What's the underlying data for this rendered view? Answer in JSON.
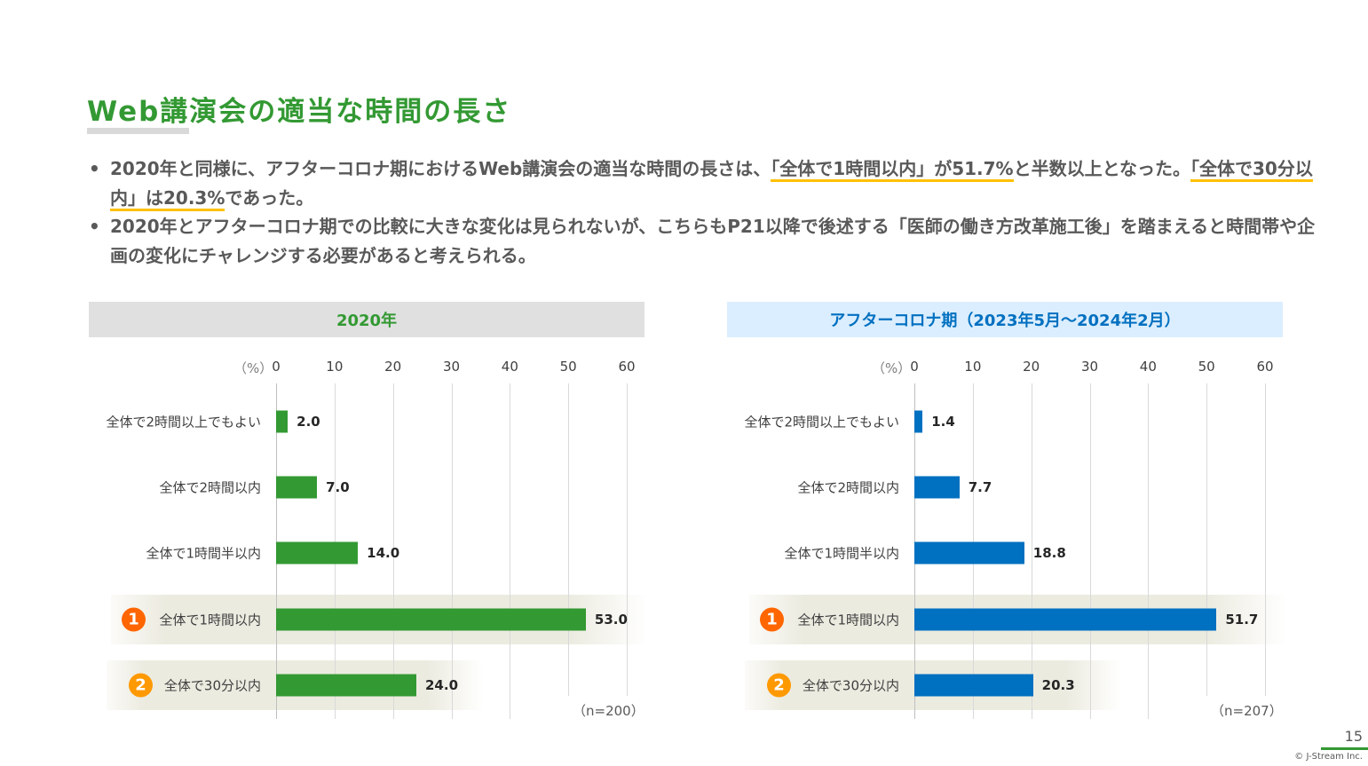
{
  "title": "Web講演会の適当な時間の長さ",
  "bullets": [
    {
      "parts": [
        {
          "text": "2020年と同様に、アフターコロナ期におけるWeb講演会の適当な時間の長さは、",
          "hl": false
        },
        {
          "text": "「全体で1時間以内」が51.7%",
          "hl": true
        },
        {
          "text": "と半数以上となった。",
          "hl": false
        },
        {
          "text": "「全体で30分以内」は20.3%",
          "hl": true
        },
        {
          "text": "であった。",
          "hl": false
        }
      ]
    },
    {
      "parts": [
        {
          "text": "2020年とアフターコロナ期での比較に大きな変化は見られないが、こちらもP21以降で後述する「医師の働き方改革施工後」を踏まえると時間帯や企画の変化にチャレンジする必要があると考えられる。",
          "hl": false
        }
      ]
    }
  ],
  "colors": {
    "title": "#339933",
    "highlight": "#ffc000",
    "rank1": "#ff6600",
    "rank2": "#ff9900"
  },
  "chart_data": [
    {
      "type": "bar",
      "orientation": "horizontal",
      "title": "2020年",
      "header_bg": "#e0e0e0",
      "header_color": "#339933",
      "bar_color": "#339933",
      "unit_label": "（%）",
      "xlim": [
        0,
        60
      ],
      "ticks": [
        "0",
        "10",
        "20",
        "30",
        "40",
        "50",
        "60"
      ],
      "grid": true,
      "categories": [
        "全体で2時間以上でもよい",
        "全体で2時間以内",
        "全体で1時間半以内",
        "全体で1時間以内",
        "全体で30分以内"
      ],
      "values": [
        2.0,
        7.0,
        14.0,
        53.0,
        24.0
      ],
      "labels": [
        "2.0",
        "7.0",
        "14.0",
        "53.0",
        "24.0"
      ],
      "ranks": [
        null,
        null,
        null,
        "1",
        "2"
      ],
      "note": "（n=200）"
    },
    {
      "type": "bar",
      "orientation": "horizontal",
      "title": "アフターコロナ期（2023年5月～2024年2月）",
      "header_bg": "#dbeeff",
      "header_color": "#0070c0",
      "bar_color": "#0070c0",
      "unit_label": "（%）",
      "xlim": [
        0,
        60
      ],
      "ticks": [
        "0",
        "10",
        "20",
        "30",
        "40",
        "50",
        "60"
      ],
      "grid": true,
      "categories": [
        "全体で2時間以上でもよい",
        "全体で2時間以内",
        "全体で1時間半以内",
        "全体で1時間以内",
        "全体で30分以内"
      ],
      "values": [
        1.4,
        7.7,
        18.8,
        51.7,
        20.3
      ],
      "labels": [
        "1.4",
        "7.7",
        "18.8",
        "51.7",
        "20.3"
      ],
      "ranks": [
        null,
        null,
        null,
        "1",
        "2"
      ],
      "note": "（n=207）"
    }
  ],
  "footer": {
    "page": "15",
    "copyright": "© J-Stream Inc."
  }
}
